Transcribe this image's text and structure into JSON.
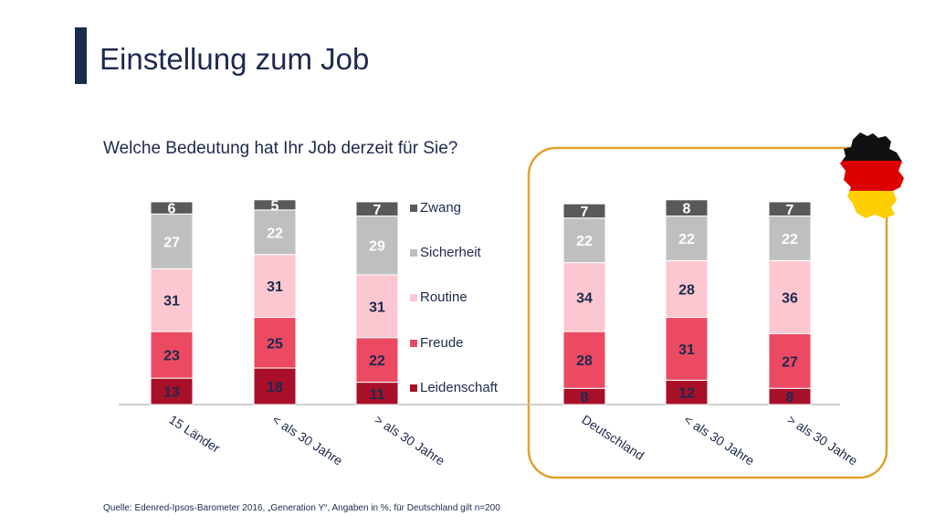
{
  "page": {
    "title": "Einstellung zum Job",
    "source": "Quelle: Edenred-Ipsos-Barometer 2016, „Generation Y“, Angaben in %, für Deutschland gilt n=200"
  },
  "chart_data": {
    "type": "bar",
    "stacked": true,
    "title": "Welche Bedeutung hat Ihr Job derzeit für Sie?",
    "categories": [
      "15 Länder",
      "< als 30 Jahre",
      "> als 30 Jahre",
      "Deutschland",
      "< als 30 Jahre",
      "> als 30 Jahre"
    ],
    "groups": [
      {
        "categories": [
          0,
          1,
          2
        ]
      },
      {
        "categories": [
          3,
          4,
          5
        ],
        "highlighted": true
      }
    ],
    "series": [
      {
        "name": "Leidenschaft",
        "color": "#a8102a",
        "values": [
          13,
          18,
          11,
          8,
          12,
          8
        ]
      },
      {
        "name": "Freude",
        "color": "#ec4a63",
        "values": [
          23,
          25,
          22,
          28,
          31,
          27
        ]
      },
      {
        "name": "Routine",
        "color": "#fcc7d0",
        "values": [
          31,
          31,
          31,
          34,
          28,
          36
        ]
      },
      {
        "name": "Sicherheit",
        "color": "#bfbfbf",
        "values": [
          27,
          22,
          29,
          22,
          22,
          22
        ]
      },
      {
        "name": "Zwang",
        "color": "#595959",
        "values": [
          6,
          5,
          7,
          7,
          8,
          7
        ]
      }
    ],
    "legend_order": [
      "Zwang",
      "Sicherheit",
      "Routine",
      "Freude",
      "Leidenschaft"
    ],
    "legend_position": "between-groups",
    "highlight_color": "#e3a02c",
    "grid": false
  },
  "flag": {
    "icon": "germany-map-flag-icon",
    "colors": [
      "#111111",
      "#dd0000",
      "#ffce00"
    ]
  }
}
